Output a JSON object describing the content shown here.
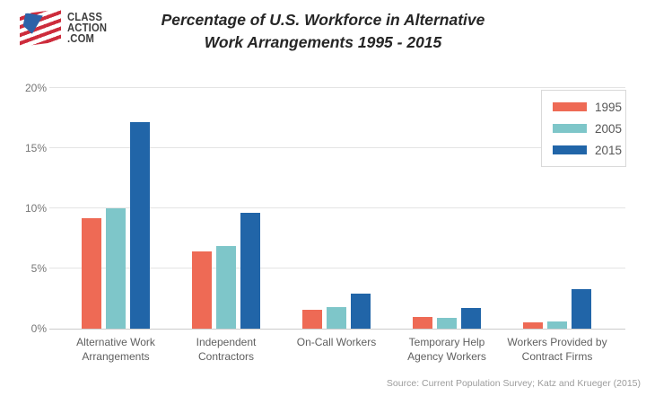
{
  "logo": {
    "line1": "CLASS",
    "line2": "ACTION",
    "line3": ".COM"
  },
  "title": "Percentage of U.S. Workforce in Alternative\nWork Arrangements 1995 - 2015",
  "source": "Source: Current Population Survey; Katz and Krueger (2015)",
  "chart_data": {
    "type": "bar",
    "title": "Percentage of U.S. Workforce in Alternative Work Arrangements 1995 - 2015",
    "categories": [
      "Alternative Work\nArrangements",
      "Independent\nContractors",
      "On-Call Workers",
      "Temporary Help\nAgency Workers",
      "Workers Provided by\nContract Firms"
    ],
    "series": [
      {
        "name": "1995",
        "color": "#ee6a55",
        "values": [
          9.2,
          6.4,
          1.6,
          1.0,
          0.5
        ]
      },
      {
        "name": "2005",
        "color": "#7ec6c9",
        "values": [
          10.0,
          6.9,
          1.8,
          0.9,
          0.6
        ]
      },
      {
        "name": "2015",
        "color": "#2165a8",
        "values": [
          17.2,
          9.6,
          2.9,
          1.7,
          3.3
        ]
      }
    ],
    "yticks": [
      0,
      5,
      10,
      15,
      20
    ],
    "ytick_labels": [
      "0%",
      "5%",
      "10%",
      "15%",
      "20%"
    ],
    "ylim": [
      0,
      20
    ],
    "xlabel": "",
    "ylabel": "",
    "grid": true,
    "legend_position": "top-right",
    "source_note": "Source: Current Population Survey; Katz and Krueger (2015)"
  }
}
